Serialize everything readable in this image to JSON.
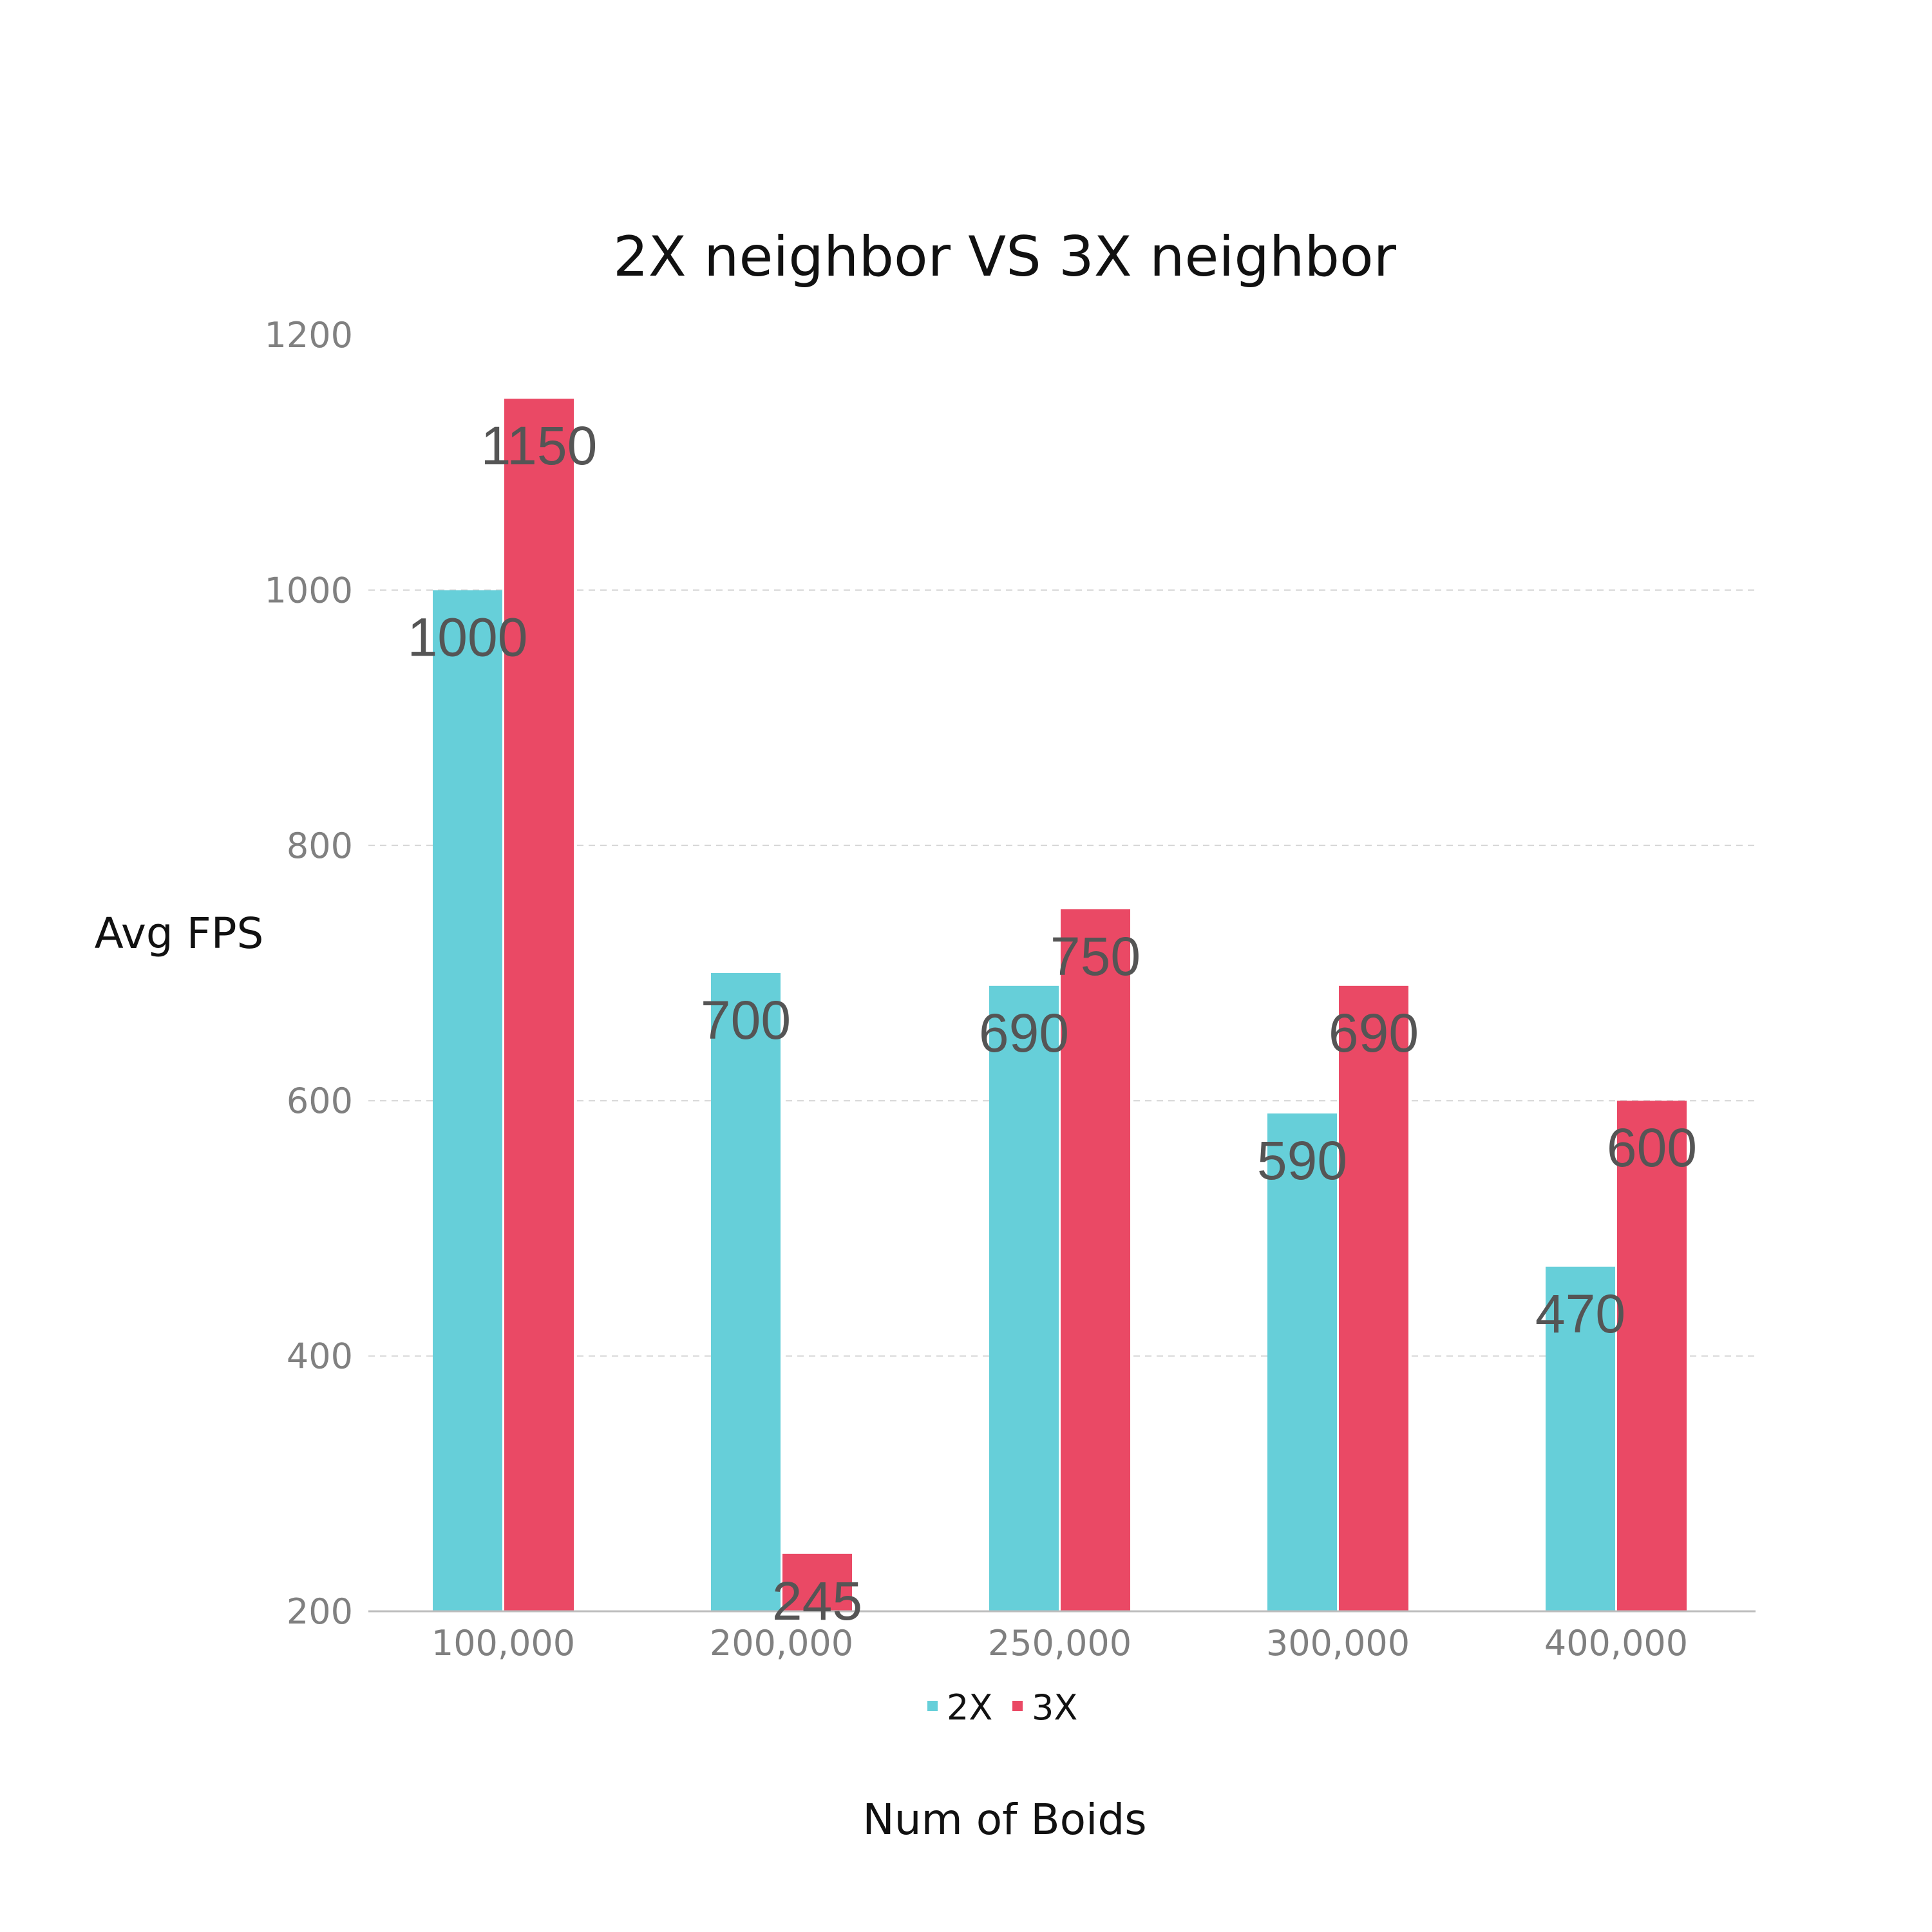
{
  "chart_data": {
    "type": "bar",
    "title": "2X neighbor VS 3X neighbor",
    "xlabel": "Num of Boids",
    "ylabel": "Avg FPS",
    "categories": [
      "100,000",
      "200,000",
      "250,000",
      "300,000",
      "400,000"
    ],
    "series": [
      {
        "name": "2X",
        "color": "#66CFD9",
        "values": [
          1000,
          700,
          690,
          590,
          470
        ]
      },
      {
        "name": "3X",
        "color": "#EA4965",
        "values": [
          1150,
          245,
          750,
          690,
          600
        ]
      }
    ],
    "ylim": [
      200,
      1200
    ],
    "yticks": [
      200,
      400,
      600,
      800,
      1000,
      1200
    ],
    "ytick_labels": [
      "200",
      "400",
      "600",
      "800",
      "1000",
      "1200"
    ],
    "grid": true,
    "legend": "bottom-center"
  }
}
